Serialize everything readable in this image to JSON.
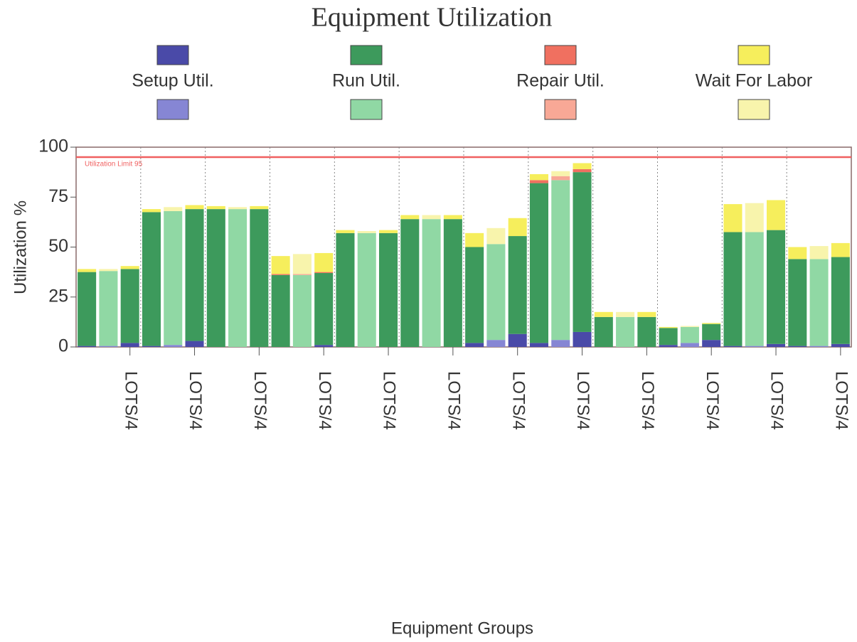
{
  "chart_data": {
    "type": "stacked_bar",
    "title": "Equipment Utilization",
    "y_label": "Utilization %",
    "x_label": "Equipment Groups",
    "categories": [
      null,
      null,
      "LOTS/4",
      null,
      null,
      "LOTS/4",
      null,
      null,
      "LOTS/4",
      null,
      null,
      "LOTS/4",
      null,
      null,
      "LOTS/4",
      null,
      null,
      "LOTS/4",
      null,
      null,
      "LOTS/4",
      null,
      null,
      "LOTS/4",
      null,
      null,
      "LOTS/4",
      null,
      null,
      "LOTS/4",
      null,
      null,
      "LOTS/4",
      null,
      null,
      "LOTS/4"
    ],
    "series": [
      {
        "name": "Setup Util.",
        "color": "#4a4aa8",
        "light_color": "#8686d4",
        "values": [
          0.5,
          0.5,
          2,
          0.5,
          1,
          3,
          0,
          0,
          0,
          0,
          0,
          1,
          0,
          0,
          0,
          0,
          0,
          0,
          2,
          3.5,
          6.5,
          2,
          3.5,
          7.5,
          0,
          0,
          0,
          1,
          2,
          3.5,
          0.5,
          0.5,
          1.5,
          0.5,
          0.5,
          1.5
        ]
      },
      {
        "name": "Run Util.",
        "color": "#3d9a5c",
        "light_color": "#90d8a4",
        "values": [
          37,
          37.5,
          37,
          67,
          67,
          66,
          69,
          69,
          69,
          36,
          36,
          36,
          57,
          57,
          57,
          64,
          64,
          64,
          48,
          48,
          49,
          80,
          80,
          80,
          15,
          15,
          15,
          8.5,
          8,
          8,
          57,
          57,
          57,
          43.5,
          43.5,
          43.5
        ]
      },
      {
        "name": "Repair Util.",
        "color": "#f07060",
        "light_color": "#f8a896",
        "values": [
          0,
          0,
          0,
          0,
          0,
          0,
          0,
          0,
          0,
          0.5,
          0.5,
          0.5,
          0,
          0,
          0,
          0,
          0,
          0,
          0,
          0,
          0,
          1.5,
          2,
          1.5,
          0,
          0,
          0,
          0,
          0,
          0,
          0,
          0,
          0,
          0,
          0,
          0
        ]
      },
      {
        "name": "Wait For Labor",
        "color": "#f6ee5c",
        "light_color": "#f8f4ac",
        "values": [
          1.5,
          1,
          1.5,
          1.5,
          2,
          2,
          1.5,
          1,
          1.5,
          9,
          10,
          9.5,
          1.5,
          1,
          1.5,
          2,
          2,
          2,
          7,
          8,
          9,
          3,
          2.5,
          3,
          2.5,
          2.5,
          2.5,
          0.5,
          0.5,
          0.5,
          14,
          14.5,
          15,
          6,
          6.5,
          7
        ]
      }
    ],
    "annotation": {
      "label": "Utilization Limit 95",
      "value": 95,
      "color": "#f06060"
    },
    "ylim": [
      0,
      100
    ],
    "yticks": [
      0,
      25,
      50,
      75,
      100
    ],
    "grid": true
  }
}
